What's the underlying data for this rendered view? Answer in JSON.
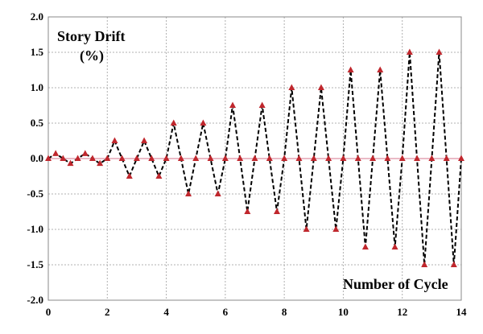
{
  "chart_data": {
    "type": "line",
    "title": "",
    "ylabel_line1": "Story Drift",
    "ylabel_line2": "(%)",
    "xlabel": "Number of Cycle",
    "xlim": [
      0,
      14
    ],
    "ylim": [
      -2.0,
      2.0
    ],
    "xticks": [
      0,
      2,
      4,
      6,
      8,
      10,
      12,
      14
    ],
    "yticks": [
      -2.0,
      -1.5,
      -1.0,
      -0.5,
      0.0,
      0.5,
      1.0,
      1.5,
      2.0
    ],
    "ytick_labels": [
      "-2.0",
      "-1.5",
      "-1.0",
      "-0.5",
      "0.0",
      "0.5",
      "1.0",
      "1.5",
      "2.0"
    ],
    "grid": true,
    "colors": {
      "line": "#000000",
      "marker": "#c0272d",
      "grid": "#b0b0b0",
      "zero_line": "#e3a3b3"
    },
    "series": [
      {
        "x": [
          0,
          0.25,
          0.5,
          0.75,
          1,
          1.25,
          1.5,
          1.75,
          2,
          2.25,
          2.5,
          2.75,
          3,
          3.25,
          3.5,
          3.75,
          4,
          4.25,
          4.5,
          4.75,
          5,
          5.25,
          5.5,
          5.75,
          6,
          6.25,
          6.5,
          6.75,
          7,
          7.25,
          7.5,
          7.75,
          8,
          8.25,
          8.5,
          8.75,
          9,
          9.25,
          9.5,
          9.75,
          10,
          10.25,
          10.5,
          10.75,
          11,
          11.25,
          11.5,
          11.75,
          12,
          12.25,
          12.5,
          12.75,
          13,
          13.25,
          13.5,
          13.75,
          14
        ],
        "y": [
          0,
          0.07,
          0,
          -0.07,
          0,
          0.07,
          0,
          -0.07,
          0,
          0.25,
          0,
          -0.25,
          0,
          0.25,
          0,
          -0.25,
          0,
          0.5,
          0,
          -0.5,
          0,
          0.5,
          0,
          -0.5,
          0,
          0.75,
          0,
          -0.75,
          0,
          0.75,
          0,
          -0.75,
          0,
          1.0,
          0,
          -1.0,
          0,
          1.0,
          0,
          -1.0,
          0,
          1.25,
          0,
          -1.25,
          0,
          1.25,
          0,
          -1.25,
          0,
          1.5,
          0,
          -1.5,
          0,
          1.5,
          0,
          -1.5,
          0
        ]
      }
    ]
  }
}
